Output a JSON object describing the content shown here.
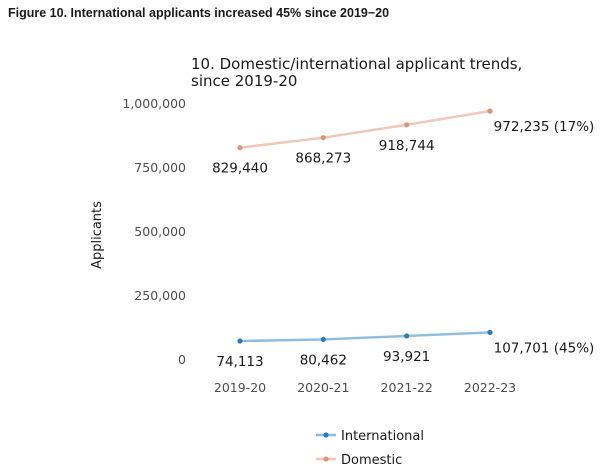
{
  "figure_title": "Figure 10. International applicants increased 45% since 2019−20",
  "chart_data": {
    "type": "line",
    "title_lines": [
      "10. Domestic/international applicant trends,",
      "since 2019-20"
    ],
    "xlabel": "",
    "ylabel": "Applicants",
    "categories": [
      "2019-20",
      "2020-21",
      "2021-22",
      "2022-23"
    ],
    "ylim": [
      0,
      1000000
    ],
    "yticks": [
      {
        "value": 0,
        "label": "0"
      },
      {
        "value": 250000,
        "label": "250,000"
      },
      {
        "value": 500000,
        "label": "500,000"
      },
      {
        "value": 750000,
        "label": "750,000"
      },
      {
        "value": 1000000,
        "label": "1,000,000"
      }
    ],
    "grid": false,
    "legend_position": "bottom",
    "series": [
      {
        "name": "International",
        "color": "#2b7bba",
        "line_color": "#8cbce0",
        "values": [
          74113,
          80462,
          93921,
          107701
        ],
        "labels": [
          "74,113",
          "80,462",
          "93,921",
          "107,701 (45%)"
        ]
      },
      {
        "name": "Domestic",
        "color": "#e0927a",
        "line_color": "#f2c6b6",
        "values": [
          829440,
          868273,
          918744,
          972235
        ],
        "labels": [
          "829,440",
          "868,273",
          "918,744",
          "972,235 (17%)"
        ]
      }
    ]
  }
}
